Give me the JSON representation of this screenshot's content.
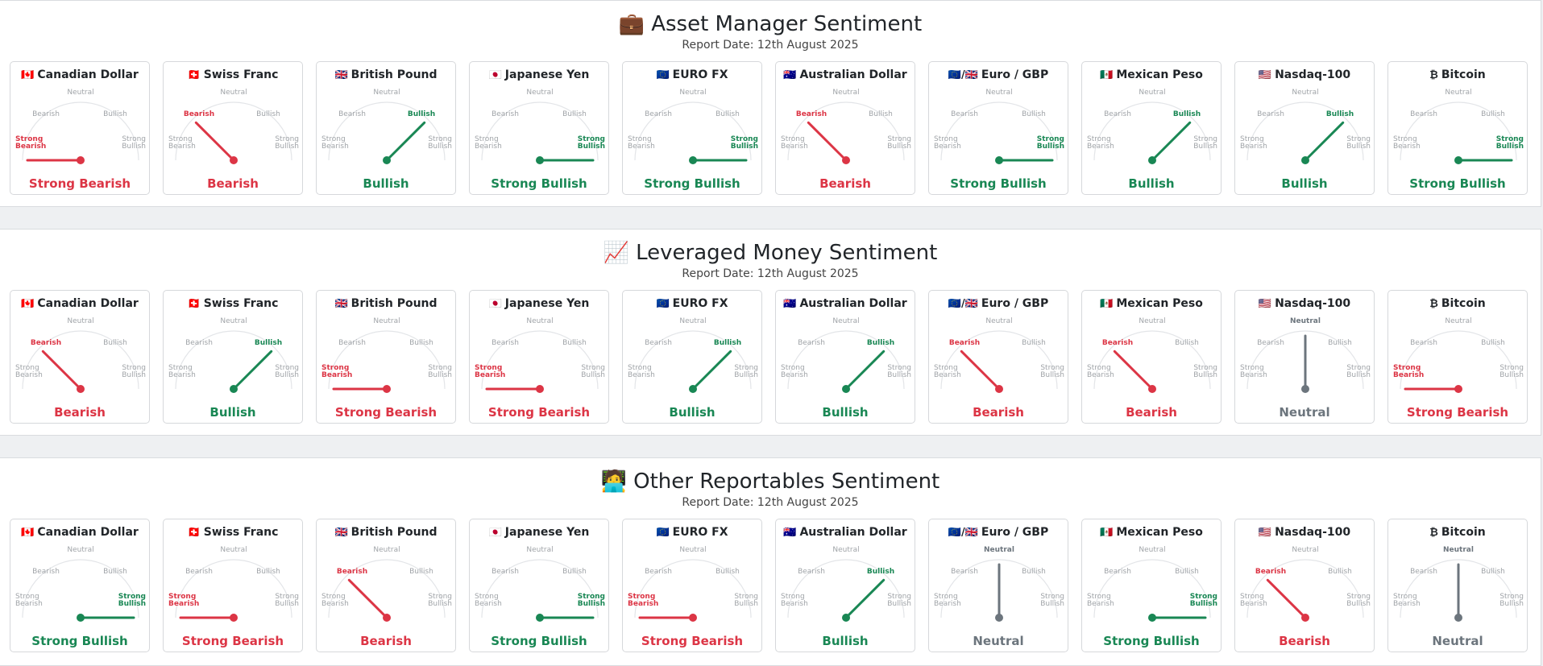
{
  "colors": {
    "bullish": "#198754",
    "bearish": "#dc3545",
    "neutral": "#6c757d",
    "inactive": "#a0a4a8"
  },
  "gauge_labels": {
    "neutral": "Neutral",
    "bearish": "Bearish",
    "bullish": "Bullish",
    "strong_bearish": [
      "Strong",
      "Bearish"
    ],
    "strong_bullish": [
      "Strong",
      "Bullish"
    ]
  },
  "sections": [
    {
      "emoji": "💼",
      "title": "Asset Manager Sentiment",
      "report_date": "Report Date: 12th August 2025",
      "cards": [
        {
          "flag": "🇨🇦",
          "name": "Canadian Dollar",
          "sentiment": "Strong Bearish"
        },
        {
          "flag": "🇨🇭",
          "name": "Swiss Franc",
          "sentiment": "Bearish"
        },
        {
          "flag": "🇬🇧",
          "name": "British Pound",
          "sentiment": "Bullish"
        },
        {
          "flag": "🇯🇵",
          "name": "Japanese Yen",
          "sentiment": "Strong Bullish"
        },
        {
          "flag": "🇪🇺",
          "name": "EURO FX",
          "sentiment": "Strong Bullish"
        },
        {
          "flag": "🇦🇺",
          "name": "Australian Dollar",
          "sentiment": "Bearish"
        },
        {
          "flag": "🇪🇺/🇬🇧",
          "name": "Euro / GBP",
          "sentiment": "Strong Bullish"
        },
        {
          "flag": "🇲🇽",
          "name": "Mexican Peso",
          "sentiment": "Bullish"
        },
        {
          "flag": "🇺🇸",
          "name": "Nasdaq-100",
          "sentiment": "Bullish"
        },
        {
          "flag": "₿",
          "name": "Bitcoin",
          "sentiment": "Strong Bullish"
        }
      ]
    },
    {
      "emoji": "📈",
      "title": "Leveraged Money Sentiment",
      "report_date": "Report Date: 12th August 2025",
      "cards": [
        {
          "flag": "🇨🇦",
          "name": "Canadian Dollar",
          "sentiment": "Bearish"
        },
        {
          "flag": "🇨🇭",
          "name": "Swiss Franc",
          "sentiment": "Bullish"
        },
        {
          "flag": "🇬🇧",
          "name": "British Pound",
          "sentiment": "Strong Bearish"
        },
        {
          "flag": "🇯🇵",
          "name": "Japanese Yen",
          "sentiment": "Strong Bearish"
        },
        {
          "flag": "🇪🇺",
          "name": "EURO FX",
          "sentiment": "Bullish"
        },
        {
          "flag": "🇦🇺",
          "name": "Australian Dollar",
          "sentiment": "Bullish"
        },
        {
          "flag": "🇪🇺/🇬🇧",
          "name": "Euro / GBP",
          "sentiment": "Bearish"
        },
        {
          "flag": "🇲🇽",
          "name": "Mexican Peso",
          "sentiment": "Bearish"
        },
        {
          "flag": "🇺🇸",
          "name": "Nasdaq-100",
          "sentiment": "Neutral"
        },
        {
          "flag": "₿",
          "name": "Bitcoin",
          "sentiment": "Strong Bearish"
        }
      ]
    },
    {
      "emoji": "🧑‍💻",
      "title": "Other Reportables Sentiment",
      "report_date": "Report Date: 12th August 2025",
      "cards": [
        {
          "flag": "🇨🇦",
          "name": "Canadian Dollar",
          "sentiment": "Strong Bullish"
        },
        {
          "flag": "🇨🇭",
          "name": "Swiss Franc",
          "sentiment": "Strong Bearish"
        },
        {
          "flag": "🇬🇧",
          "name": "British Pound",
          "sentiment": "Bearish"
        },
        {
          "flag": "🇯🇵",
          "name": "Japanese Yen",
          "sentiment": "Strong Bullish"
        },
        {
          "flag": "🇪🇺",
          "name": "EURO FX",
          "sentiment": "Strong Bearish"
        },
        {
          "flag": "🇦🇺",
          "name": "Australian Dollar",
          "sentiment": "Bullish"
        },
        {
          "flag": "🇪🇺/🇬🇧",
          "name": "Euro / GBP",
          "sentiment": "Neutral"
        },
        {
          "flag": "🇲🇽",
          "name": "Mexican Peso",
          "sentiment": "Strong Bullish"
        },
        {
          "flag": "🇺🇸",
          "name": "Nasdaq-100",
          "sentiment": "Bearish"
        },
        {
          "flag": "₿",
          "name": "Bitcoin",
          "sentiment": "Neutral"
        }
      ]
    }
  ]
}
